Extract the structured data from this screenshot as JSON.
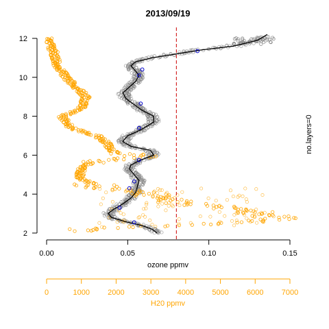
{
  "chart_data": {
    "type": "scatter",
    "title": "2013/09/19",
    "x_primary": {
      "label": "ozone ppmv",
      "range": [
        0.0,
        0.15
      ],
      "ticks": [
        0.0,
        0.05,
        0.1,
        0.15
      ],
      "tick_labels": [
        "0.00",
        "0.05",
        "0.10",
        "0.15"
      ]
    },
    "x_secondary": {
      "label": "H20 ppmv",
      "range": [
        0,
        7000
      ],
      "ticks": [
        0,
        1000,
        2000,
        3000,
        4000,
        5000,
        6000,
        7000
      ],
      "tick_labels": [
        "0",
        "1000",
        "2000",
        "3000",
        "4000",
        "5000",
        "6000",
        "7000"
      ],
      "color": "#FFA500"
    },
    "y": {
      "range": [
        2,
        12.3
      ],
      "ticks": [
        2,
        4,
        6,
        8,
        10,
        12
      ],
      "tick_labels": [
        "2",
        "4",
        "6",
        "8",
        "10",
        "12"
      ]
    },
    "right_label": "no.layers=0",
    "reference_line": {
      "x": 0.08,
      "color": "#CC0000",
      "style": "dashed"
    },
    "colors": {
      "ozone_points": "#808080",
      "ozone_line": "#000000",
      "ozone_highlight": "#0000CC",
      "water_vapour": "#FFA500"
    },
    "series": [
      {
        "kind": "ozone_smoothed_profile",
        "points": [
          [
            0.068,
            2.0
          ],
          [
            0.065,
            2.2
          ],
          [
            0.058,
            2.4
          ],
          [
            0.048,
            2.6
          ],
          [
            0.04,
            2.8
          ],
          [
            0.038,
            3.0
          ],
          [
            0.041,
            3.2
          ],
          [
            0.047,
            3.5
          ],
          [
            0.052,
            3.8
          ],
          [
            0.055,
            4.1
          ],
          [
            0.056,
            4.4
          ],
          [
            0.057,
            4.7
          ],
          [
            0.054,
            5.0
          ],
          [
            0.051,
            5.3
          ],
          [
            0.052,
            5.5
          ],
          [
            0.058,
            5.75
          ],
          [
            0.066,
            6.0
          ],
          [
            0.064,
            6.25
          ],
          [
            0.052,
            6.45
          ],
          [
            0.047,
            6.7
          ],
          [
            0.05,
            7.0
          ],
          [
            0.058,
            7.3
          ],
          [
            0.066,
            7.7
          ],
          [
            0.066,
            8.0
          ],
          [
            0.059,
            8.3
          ],
          [
            0.054,
            8.6
          ],
          [
            0.049,
            8.9
          ],
          [
            0.047,
            9.2
          ],
          [
            0.051,
            9.5
          ],
          [
            0.055,
            9.8
          ],
          [
            0.057,
            10.1
          ],
          [
            0.054,
            10.4
          ],
          [
            0.052,
            10.6
          ],
          [
            0.055,
            10.8
          ],
          [
            0.065,
            11.0
          ],
          [
            0.08,
            11.2
          ],
          [
            0.095,
            11.4
          ],
          [
            0.115,
            11.6
          ],
          [
            0.13,
            11.9
          ],
          [
            0.136,
            12.2
          ]
        ]
      },
      {
        "kind": "ozone_highlighted_layers",
        "points": [
          [
            0.054,
            2.55
          ],
          [
            0.045,
            3.3
          ],
          [
            0.051,
            4.3
          ],
          [
            0.054,
            4.65
          ],
          [
            0.057,
            5.75
          ],
          [
            0.057,
            7.4
          ],
          [
            0.058,
            8.65
          ],
          [
            0.057,
            10.1
          ],
          [
            0.059,
            10.4
          ],
          [
            0.093,
            11.35
          ]
        ]
      },
      {
        "kind": "water_vapour_profile",
        "points": [
          [
            50,
            12.0
          ],
          [
            200,
            11.3
          ],
          [
            300,
            10.6
          ],
          [
            550,
            10.0
          ],
          [
            850,
            9.5
          ],
          [
            1150,
            9.0
          ],
          [
            1000,
            8.4
          ],
          [
            450,
            8.0
          ],
          [
            700,
            7.4
          ],
          [
            1450,
            7.0
          ],
          [
            1750,
            6.6
          ],
          [
            1850,
            6.2
          ],
          [
            2900,
            5.9
          ],
          [
            1300,
            5.7
          ],
          [
            1000,
            5.3
          ],
          [
            950,
            4.8
          ],
          [
            1650,
            4.3
          ],
          [
            2700,
            4.1
          ],
          [
            3700,
            3.6
          ],
          [
            5200,
            3.3
          ],
          [
            6200,
            3.0
          ],
          [
            6700,
            2.7
          ],
          [
            5000,
            2.5
          ],
          [
            3000,
            2.35
          ],
          [
            1200,
            2.2
          ],
          [
            700,
            2.1
          ]
        ]
      }
    ]
  }
}
